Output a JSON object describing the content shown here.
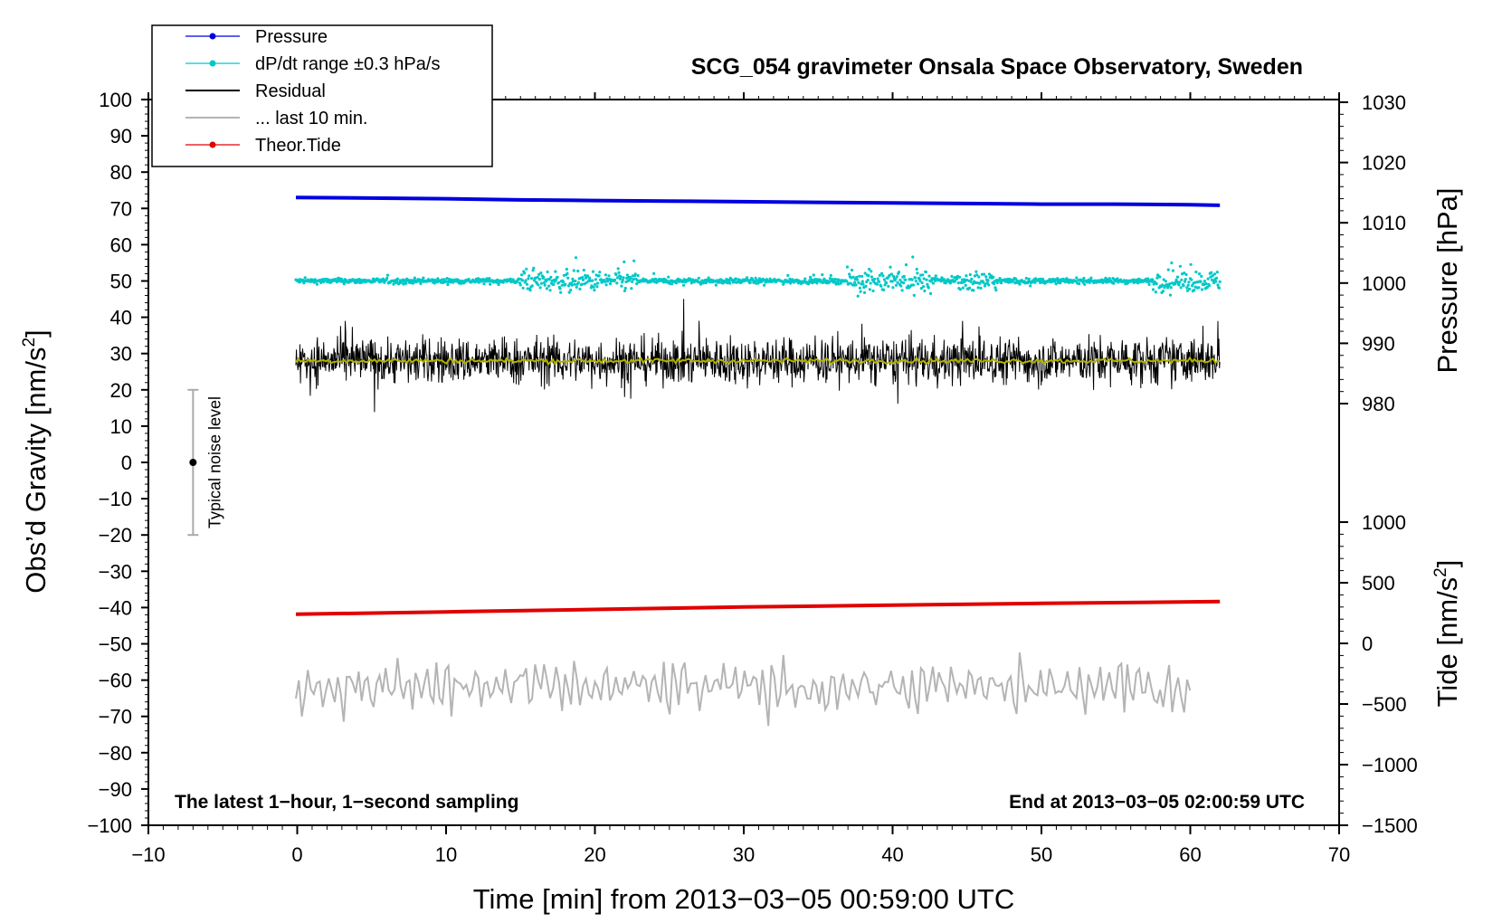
{
  "chart_data": {
    "type": "line",
    "title": "SCG_054 gravimeter Onsala Space Observatory, Sweden",
    "xlabel": "Time [min] from 2013−03−05 00:59:00 UTC",
    "ylabel_left": "Obs’d Gravity [nm/s²]",
    "ylabel_left_base": "Obs’d Gravity [nm/s",
    "ylabel_pressure": "Pressure [hPa]",
    "ylabel_tide": "Tide [nm/s²]",
    "ylabel_tide_base": "Tide [nm/s",
    "unit_sup": "2",
    "xlim": [
      -10,
      70
    ],
    "ylim_left": [
      -100,
      100
    ],
    "x_ticks": [
      -10,
      0,
      10,
      20,
      30,
      40,
      50,
      60,
      70
    ],
    "x_tick_labels": [
      "−10",
      "0",
      "10",
      "20",
      "30",
      "40",
      "50",
      "60",
      "70"
    ],
    "y_ticks": [
      100,
      90,
      80,
      70,
      60,
      50,
      40,
      30,
      20,
      10,
      0,
      -10,
      -20,
      -30,
      -40,
      -50,
      -60,
      -70,
      -80,
      -90,
      -100
    ],
    "y_tick_labels": [
      "100",
      "90",
      "80",
      "70",
      "60",
      "50",
      "40",
      "30",
      "20",
      "10",
      "0",
      "−10",
      "−20",
      "−30",
      "−40",
      "−50",
      "−60",
      "−70",
      "−80",
      "−90",
      "−100"
    ],
    "pressure_axis": {
      "range": [
        970,
        1030
      ],
      "ticks": [
        1030,
        1020,
        1010,
        1000,
        990,
        980
      ],
      "tick_labels": [
        "1030",
        "1020",
        "1010",
        "1000",
        "990",
        "980"
      ]
    },
    "tide_axis": {
      "range": [
        -1500,
        1500
      ],
      "ticks": [
        1000,
        500,
        0,
        -500,
        -1000,
        -1500
      ],
      "tick_labels": [
        "1000",
        "500",
        "0",
        "−500",
        "−1000",
        "−1500"
      ]
    },
    "legend": [
      {
        "label": "Pressure",
        "color": "#0000e0",
        "marker": true
      },
      {
        "label": "dP/dt range ±0.3 hPa/s",
        "color": "#00c8c8",
        "marker": true
      },
      {
        "label": "Residual",
        "color": "#000000",
        "marker": false
      },
      {
        "label": "... last 10 min.",
        "color": "#b4b4b4",
        "marker": false
      },
      {
        "label": "Theor.Tide",
        "color": "#e00000",
        "marker": true
      }
    ],
    "series": [
      {
        "name": "Pressure",
        "color": "#0000e0",
        "axis": "pressure",
        "x": [
          0,
          5,
          10,
          15,
          20,
          25,
          30,
          35,
          40,
          45,
          50,
          55,
          60,
          62
        ],
        "y": [
          1014.2,
          1014.1,
          1014.0,
          1013.8,
          1013.7,
          1013.6,
          1013.5,
          1013.4,
          1013.3,
          1013.2,
          1013.1,
          1013.1,
          1013.0,
          1012.9
        ]
      },
      {
        "name": "dP/dt range ±0.3 hPa/s",
        "color": "#00c8c8",
        "axis": "left",
        "x_range": [
          0,
          62
        ],
        "center": 50,
        "band": [
          48,
          52
        ]
      },
      {
        "name": "Residual",
        "color": "#000000",
        "axis": "left",
        "x_range": [
          0,
          62
        ],
        "center": 28,
        "band": [
          15,
          42
        ]
      },
      {
        "name": "Residual smoothed",
        "color": "#b0b000",
        "axis": "left",
        "x_range": [
          0,
          62
        ],
        "center": 28
      },
      {
        "name": "... last 10 min.",
        "color": "#b4b4b4",
        "axis": "left",
        "x_range": [
          0,
          60
        ],
        "center": -62,
        "band": [
          -76,
          -48
        ]
      },
      {
        "name": "Theor.Tide",
        "color": "#e00000",
        "axis": "tide",
        "x": [
          0,
          10,
          20,
          30,
          40,
          50,
          62
        ],
        "y": [
          240,
          260,
          280,
          300,
          315,
          330,
          345
        ]
      }
    ],
    "noise_bar": {
      "x": -7,
      "center": 0,
      "low": -20,
      "high": 20,
      "label": "Typical noise level"
    },
    "annotations": {
      "bottom_left": "The latest 1−hour, 1−second sampling",
      "bottom_right": "End at 2013−03−05 02:00:59 UTC"
    }
  }
}
